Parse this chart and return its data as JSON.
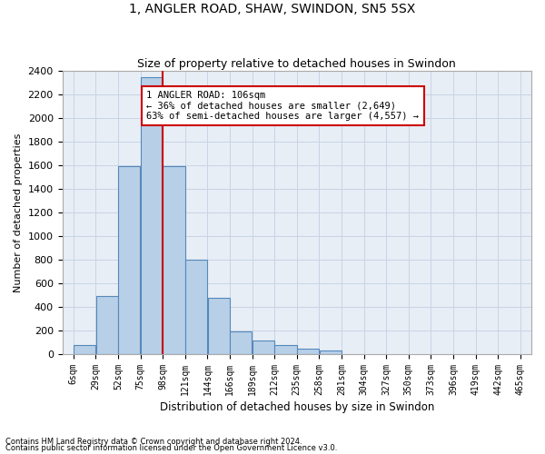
{
  "title1": "1, ANGLER ROAD, SHAW, SWINDON, SN5 5SX",
  "title2": "Size of property relative to detached houses in Swindon",
  "xlabel": "Distribution of detached houses by size in Swindon",
  "ylabel": "Number of detached properties",
  "footer1": "Contains HM Land Registry data © Crown copyright and database right 2024.",
  "footer2": "Contains public sector information licensed under the Open Government Licence v3.0.",
  "annotation_title": "1 ANGLER ROAD: 106sqm",
  "annotation_line1": "← 36% of detached houses are smaller (2,649)",
  "annotation_line2": "63% of semi-detached houses are larger (4,557) →",
  "bar_color": "#b8cfe8",
  "bar_edge_color": "#5588bb",
  "redline_color": "#cc0000",
  "annotation_box_color": "#cc0000",
  "grid_color": "#c8d4e4",
  "background_color": "#e8eef6",
  "bin_labels": [
    "6sqm",
    "29sqm",
    "52sqm",
    "75sqm",
    "98sqm",
    "121sqm",
    "144sqm",
    "166sqm",
    "189sqm",
    "212sqm",
    "235sqm",
    "258sqm",
    "281sqm",
    "304sqm",
    "327sqm",
    "350sqm",
    "373sqm",
    "396sqm",
    "419sqm",
    "442sqm",
    "465sqm"
  ],
  "bar_heights": [
    75,
    490,
    1590,
    2350,
    1590,
    800,
    480,
    190,
    115,
    75,
    50,
    30,
    0,
    0,
    0,
    0,
    0,
    0,
    0,
    0
  ],
  "redline_x_bin": 4,
  "xmin": 6,
  "xmax": 465,
  "bin_width": 23,
  "ymax": 2400,
  "ytick_step": 200,
  "n_bins": 20
}
